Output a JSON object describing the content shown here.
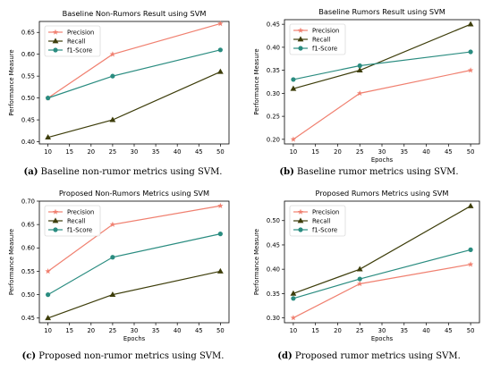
{
  "colors": {
    "precision": "#f08070",
    "recall": "#3d3d0a",
    "f1": "#2a8c80",
    "axis": "#000000"
  },
  "captions": [
    {
      "letter": "(a)",
      "text": "Baseline non-rumor metrics using SVM."
    },
    {
      "letter": "(b)",
      "text": "Baseline rumor metrics using SVM."
    },
    {
      "letter": "(c)",
      "text": "Proposed non-rumor metrics using SVM."
    },
    {
      "letter": "(d)",
      "text": "Proposed rumor metrics using SVM."
    }
  ],
  "chart_data": [
    {
      "type": "line",
      "title": "Baseline Non-Rumors Result using SVM",
      "xlabel": "",
      "ylabel": "Performance Measure",
      "x": [
        10,
        25,
        50
      ],
      "xticks": [
        10,
        15,
        20,
        25,
        30,
        35,
        40,
        45,
        50
      ],
      "xlim": [
        8.0,
        52.0
      ],
      "ylim": [
        0.395,
        0.675
      ],
      "yticks": [
        "0.40",
        "0.45",
        "0.50",
        "0.55",
        "0.60",
        "0.65"
      ],
      "legend": "top-left",
      "series": [
        {
          "name": "Precision",
          "marker": "star",
          "values": [
            0.5,
            0.6,
            0.67
          ]
        },
        {
          "name": "Recall",
          "marker": "triangle",
          "values": [
            0.41,
            0.45,
            0.56
          ]
        },
        {
          "name": "f1-Score",
          "marker": "circle",
          "values": [
            0.5,
            0.55,
            0.61
          ]
        }
      ]
    },
    {
      "type": "line",
      "title": "Baseline Rumors Result using SVM",
      "xlabel": "Epochs",
      "ylabel": "Performance Measure",
      "x": [
        10,
        25,
        50
      ],
      "xticks": [
        10,
        15,
        20,
        25,
        30,
        35,
        40,
        45,
        50
      ],
      "xlim": [
        8.0,
        52.0
      ],
      "ylim": [
        0.19,
        0.46
      ],
      "yticks": [
        "0.20",
        "0.25",
        "0.30",
        "0.35",
        "0.40",
        "0.45"
      ],
      "legend": "top-left",
      "series": [
        {
          "name": "Precision",
          "marker": "star",
          "values": [
            0.2,
            0.3,
            0.35
          ]
        },
        {
          "name": "Recall",
          "marker": "triangle",
          "values": [
            0.31,
            0.35,
            0.45
          ]
        },
        {
          "name": "f1-Score",
          "marker": "circle",
          "values": [
            0.33,
            0.36,
            0.39
          ]
        }
      ]
    },
    {
      "type": "line",
      "title": "Proposed Non-Rumors Metrics using SVM",
      "xlabel": "Epochs",
      "ylabel": "Performance Measure",
      "x": [
        10,
        25,
        50
      ],
      "xticks": [
        10,
        15,
        20,
        25,
        30,
        35,
        40,
        45,
        50
      ],
      "xlim": [
        8.0,
        52.0
      ],
      "ylim": [
        0.44,
        0.7
      ],
      "yticks": [
        "0.45",
        "0.50",
        "0.55",
        "0.60",
        "0.65",
        "0.70"
      ],
      "legend": "top-left",
      "series": [
        {
          "name": "Precision",
          "marker": "star",
          "values": [
            0.55,
            0.65,
            0.69
          ]
        },
        {
          "name": "Recall",
          "marker": "triangle",
          "values": [
            0.45,
            0.5,
            0.55
          ]
        },
        {
          "name": "f1-Score",
          "marker": "circle",
          "values": [
            0.5,
            0.58,
            0.63
          ]
        }
      ]
    },
    {
      "type": "line",
      "title": "Proposed Rumors Metrics using SVM",
      "xlabel": "Epochs",
      "ylabel": "Performance Measure",
      "x": [
        10,
        25,
        50
      ],
      "xticks": [
        10,
        15,
        20,
        25,
        30,
        35,
        40,
        45,
        50
      ],
      "xlim": [
        8.0,
        52.0
      ],
      "ylim": [
        0.29,
        0.54
      ],
      "yticks": [
        "0.30",
        "0.35",
        "0.40",
        "0.45",
        "0.50"
      ],
      "legend": "top-left",
      "series": [
        {
          "name": "Precision",
          "marker": "star",
          "values": [
            0.3,
            0.37,
            0.41
          ]
        },
        {
          "name": "Recall",
          "marker": "triangle",
          "values": [
            0.35,
            0.4,
            0.53
          ]
        },
        {
          "name": "f1-Score",
          "marker": "circle",
          "values": [
            0.34,
            0.38,
            0.44
          ]
        }
      ]
    }
  ]
}
